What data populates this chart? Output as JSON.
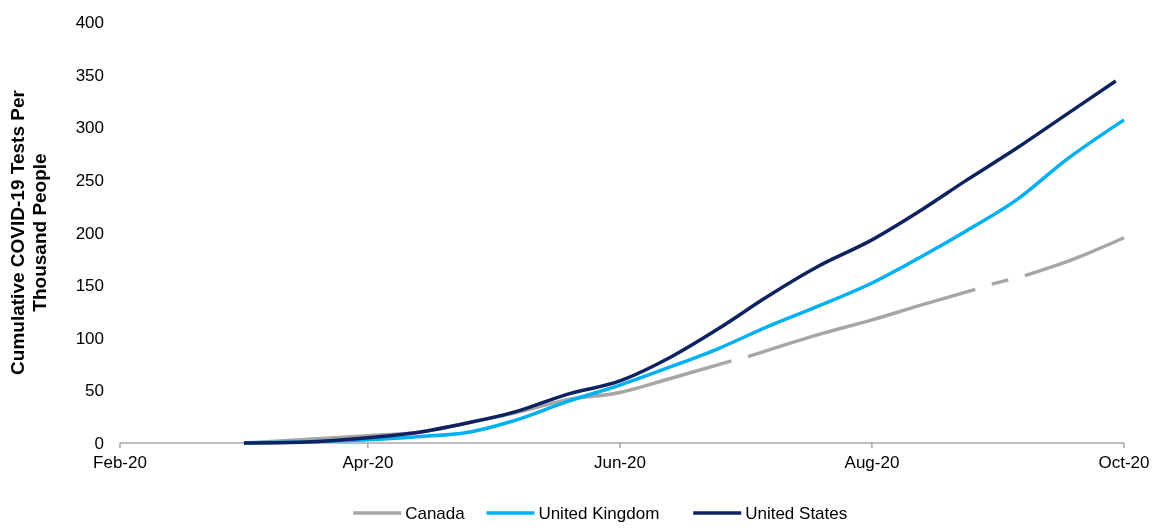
{
  "chart_data": {
    "type": "line",
    "ylabel": "Cumulative COVID-19 Tests Per Thousand People",
    "xlim": [
      "2020-02-01",
      "2020-10-01"
    ],
    "xticks": [
      {
        "value": "2020-02-01",
        "label": "Feb-20"
      },
      {
        "value": "2020-04-01",
        "label": "Apr-20"
      },
      {
        "value": "2020-06-01",
        "label": "Jun-20"
      },
      {
        "value": "2020-08-01",
        "label": "Aug-20"
      },
      {
        "value": "2020-10-01",
        "label": "Oct-20"
      }
    ],
    "ylim": [
      0,
      400
    ],
    "yticks": [
      0,
      50,
      100,
      150,
      200,
      250,
      300,
      350,
      400
    ],
    "grid": false,
    "legend": "bottom",
    "marker": "none",
    "line_style": "solid",
    "series": [
      {
        "name": "Canada",
        "color": "#a6a6a6",
        "x": [
          "2020-03-02",
          "2020-04-01",
          "2020-04-13",
          "2020-04-25",
          "2020-05-07",
          "2020-05-19",
          "2020-06-01",
          "2020-06-13",
          "2020-06-28",
          "2020-06-30",
          "2020-07-02",
          "2020-07-19",
          "2020-08-01",
          "2020-08-12",
          "2020-08-26",
          "2020-08-28",
          "2020-08-30",
          "2020-09-03",
          "2020-09-05",
          "2020-09-07",
          "2020-09-17",
          "2020-10-01"
        ],
        "values": [
          0,
          7,
          10,
          19,
          29,
          41,
          48,
          61,
          78,
          null,
          82,
          103,
          117,
          130,
          146,
          null,
          151,
          155,
          null,
          159,
          172,
          195
        ]
      },
      {
        "name": "United Kingdom",
        "color": "#00b0f0",
        "x": [
          "2020-03-02",
          "2020-03-17",
          "2020-04-01",
          "2020-04-13",
          "2020-04-25",
          "2020-05-07",
          "2020-05-19",
          "2020-06-01",
          "2020-06-13",
          "2020-06-25",
          "2020-07-07",
          "2020-07-19",
          "2020-08-01",
          "2020-08-12",
          "2020-08-24",
          "2020-09-05",
          "2020-09-17",
          "2020-10-01"
        ],
        "values": [
          0,
          1,
          3,
          6,
          10,
          22,
          39,
          55,
          72,
          90,
          111,
          130,
          152,
          175,
          202,
          231,
          269,
          307
        ]
      },
      {
        "name": "United States",
        "color": "#0e2260",
        "x": [
          "2020-03-02",
          "2020-03-17",
          "2020-04-01",
          "2020-04-13",
          "2020-04-25",
          "2020-05-07",
          "2020-05-19",
          "2020-06-01",
          "2020-06-13",
          "2020-06-25",
          "2020-07-07",
          "2020-07-19",
          "2020-08-01",
          "2020-08-12",
          "2020-08-24",
          "2020-09-05",
          "2020-09-17",
          "2020-09-29"
        ],
        "values": [
          0,
          1,
          5,
          10,
          19,
          30,
          46,
          59,
          81,
          109,
          140,
          168,
          193,
          219,
          250,
          280,
          312,
          344
        ]
      }
    ]
  }
}
